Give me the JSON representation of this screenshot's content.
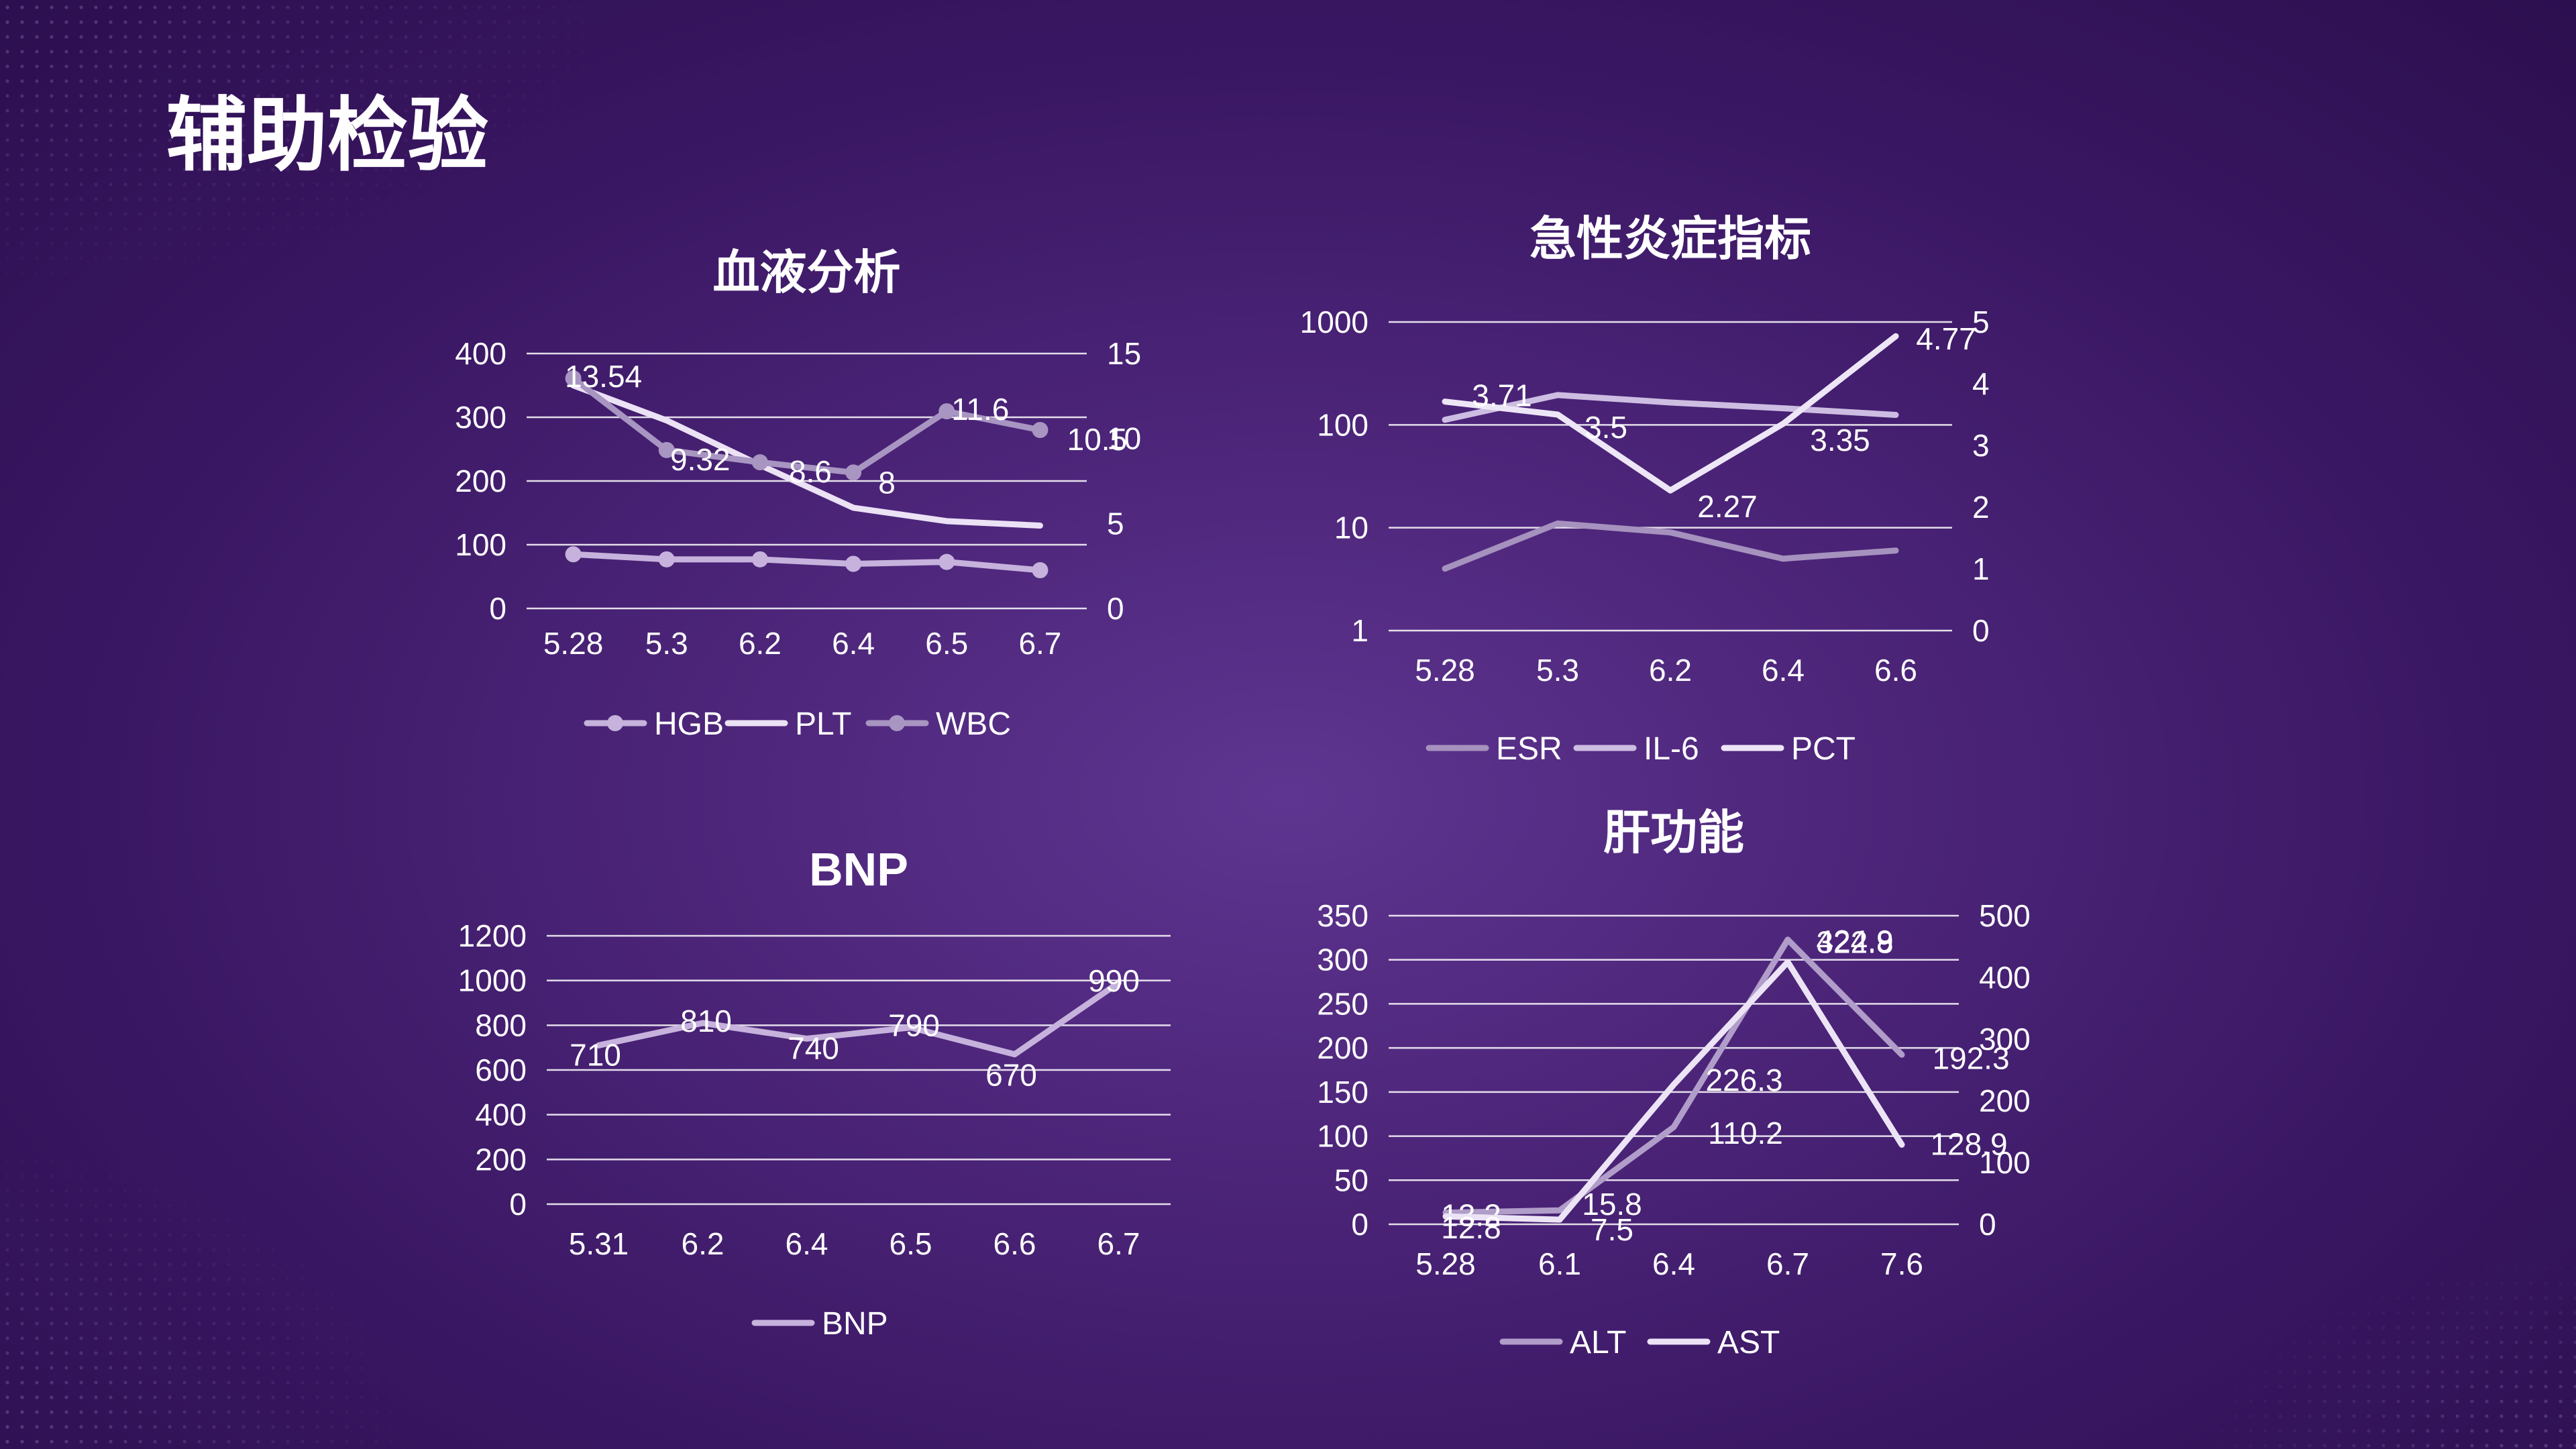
{
  "page": {
    "title": "辅助检验"
  },
  "chart_data": [
    {
      "id": "blood",
      "type": "line",
      "title": "血液分析",
      "categories": [
        "5.28",
        "5.3",
        "6.2",
        "6.4",
        "6.5",
        "6.7"
      ],
      "y_left": {
        "min": 0,
        "max": 400,
        "ticks": [
          0,
          100,
          200,
          300,
          400
        ]
      },
      "y_right": {
        "min": 0,
        "max": 15,
        "ticks": [
          0,
          5,
          10,
          15
        ]
      },
      "grid": true,
      "legend": "bottom",
      "series": [
        {
          "name": "HGB",
          "axis": "left",
          "markers": true,
          "color": "#c6b2dc",
          "values": [
            85,
            77,
            77,
            70,
            73,
            60
          ],
          "labels": []
        },
        {
          "name": "PLT",
          "axis": "left",
          "markers": false,
          "color": "#ebe2f5",
          "values": [
            350,
            295,
            225,
            158,
            137,
            130
          ],
          "labels": []
        },
        {
          "name": "WBC",
          "axis": "right",
          "markers": true,
          "color": "#a895c2",
          "values": [
            13.54,
            9.32,
            8.6,
            8,
            11.6,
            10.5
          ],
          "labels": [
            "13.54",
            "9.32",
            "8.6",
            "8",
            "11.6",
            "10.5"
          ]
        }
      ]
    },
    {
      "id": "inflammation",
      "type": "line",
      "title": "急性炎症指标",
      "categories": [
        "5.28",
        "5.3",
        "6.2",
        "6.4",
        "6.6"
      ],
      "y_left": {
        "min": 1,
        "max": 1000,
        "scale": "log",
        "ticks": [
          1,
          10,
          100,
          1000
        ]
      },
      "y_right": {
        "min": 0,
        "max": 5,
        "ticks": [
          0,
          1,
          2,
          3,
          4,
          5
        ]
      },
      "grid": true,
      "legend": "bottom",
      "series": [
        {
          "name": "ESR",
          "axis": "left",
          "color": "#a692be",
          "values": [
            4,
            11,
            9,
            5,
            6
          ],
          "labels": []
        },
        {
          "name": "IL-6",
          "axis": "left",
          "color": "#cdbde2",
          "values": [
            112,
            195,
            165,
            145,
            125
          ],
          "labels": []
        },
        {
          "name": "PCT",
          "axis": "right",
          "color": "#ede6f7",
          "values": [
            3.71,
            3.5,
            2.27,
            3.35,
            4.77
          ],
          "labels": [
            "3.71",
            "3.5",
            "2.27",
            "3.35",
            "4.77"
          ]
        }
      ]
    },
    {
      "id": "bnp",
      "type": "line",
      "title": "BNP",
      "categories": [
        "5.31",
        "6.2",
        "6.4",
        "6.5",
        "6.6",
        "6.7"
      ],
      "y_left": {
        "min": 0,
        "max": 1200,
        "ticks": [
          0,
          200,
          400,
          600,
          800,
          1000,
          1200
        ]
      },
      "grid": true,
      "legend": "bottom",
      "series": [
        {
          "name": "BNP",
          "axis": "left",
          "color": "#c6b2dc",
          "values": [
            710,
            810,
            740,
            790,
            670,
            990
          ],
          "labels": [
            "710",
            "810",
            "740",
            "790",
            "670",
            "990"
          ]
        }
      ]
    },
    {
      "id": "liver",
      "type": "line",
      "title": "肝功能",
      "categories": [
        "5.28",
        "6.1",
        "6.4",
        "6.7",
        "7.6"
      ],
      "y_left": {
        "min": 0,
        "max": 350,
        "ticks": [
          0,
          50,
          100,
          150,
          200,
          250,
          300,
          350
        ]
      },
      "y_right": {
        "min": 0,
        "max": 500,
        "ticks": [
          0,
          100,
          200,
          300,
          400,
          500
        ]
      },
      "grid": true,
      "legend": "bottom",
      "series": [
        {
          "name": "ALT",
          "axis": "left",
          "color": "#b09dc9",
          "values": [
            13.2,
            15.8,
            110.2,
            322.8,
            192.3
          ],
          "labels": [
            "13.2",
            "15.8",
            "110.2",
            "322.8",
            "192.3"
          ]
        },
        {
          "name": "AST",
          "axis": "right",
          "color": "#ece4f6",
          "values": [
            12.8,
            7.5,
            226.3,
            424.9,
            128.9
          ],
          "labels": [
            "12.8",
            "7.5",
            "226.3",
            "424.9",
            "128.9"
          ]
        }
      ]
    }
  ]
}
